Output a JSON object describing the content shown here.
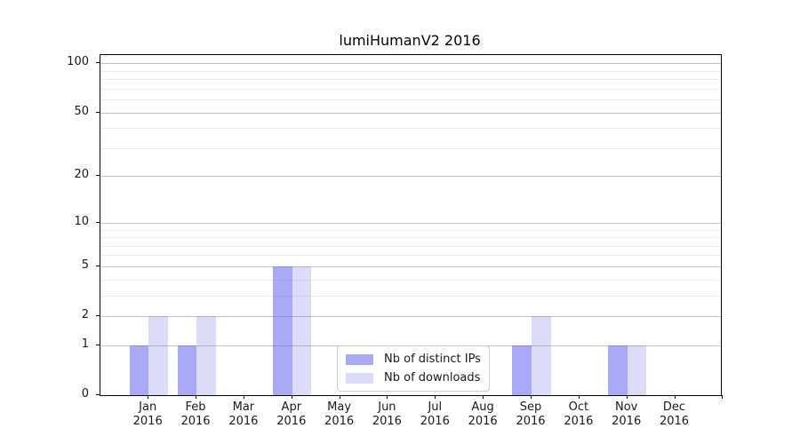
{
  "chart_data": {
    "type": "bar",
    "title": "lumiHumanV2 2016",
    "year": "2016",
    "months": [
      "Jan",
      "Feb",
      "Mar",
      "Apr",
      "May",
      "Jun",
      "Jul",
      "Aug",
      "Sep",
      "Oct",
      "Nov",
      "Dec"
    ],
    "categories": [
      "Jan 2016",
      "Feb 2016",
      "Mar 2016",
      "Apr 2016",
      "May 2016",
      "Jun 2016",
      "Jul 2016",
      "Aug 2016",
      "Sep 2016",
      "Oct 2016",
      "Nov 2016",
      "Dec 2016"
    ],
    "series": [
      {
        "name": "Nb of distinct IPs",
        "color": "#a9a9f8",
        "values": [
          1,
          1,
          0,
          5,
          0,
          0,
          0,
          0,
          1,
          0,
          1,
          0
        ]
      },
      {
        "name": "Nb of downloads",
        "color": "#dcdcf9",
        "values": [
          2,
          2,
          0,
          5,
          0,
          0,
          0,
          0,
          2,
          0,
          1,
          0
        ]
      }
    ],
    "yscale": "log1p",
    "ylim": [
      0,
      112
    ],
    "yticks": [
      0,
      1,
      2,
      5,
      10,
      20,
      50,
      100
    ],
    "minor_yticks": [
      3,
      4,
      6,
      7,
      8,
      9,
      30,
      40,
      60,
      70,
      80,
      90
    ],
    "grid": "horizontal-above-bars",
    "legend": {
      "position": "inside-bottom-center",
      "labels": [
        "Nb of distinct IPs",
        "Nb of downloads"
      ]
    },
    "colors": {
      "bar_distinct_ips": "#a9a9f8",
      "bar_downloads": "#dcdcf9",
      "major_grid": "#c4c4c4",
      "minor_grid": "#ececec",
      "spine": "#000000",
      "text": "#1a1a1a",
      "legend_border": "#cccccc",
      "background": "#ffffff"
    }
  }
}
